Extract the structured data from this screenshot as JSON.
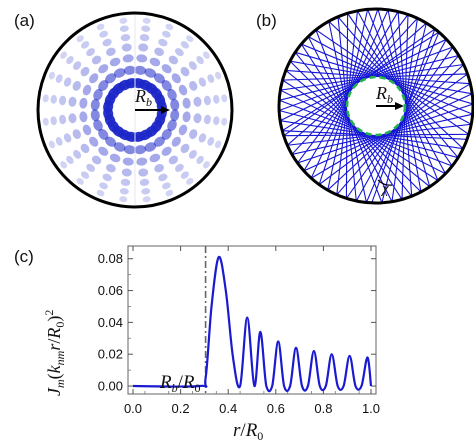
{
  "panels": {
    "a": {
      "label": "(a)",
      "radius_label_main": "R",
      "radius_label_sub": "b"
    },
    "b": {
      "label": "(b)",
      "radius_label_main": "R",
      "radius_label_sub": "b",
      "angle_label": "χ"
    },
    "c": {
      "label": "(c)"
    }
  },
  "colors": {
    "trajectory": "#1515d6",
    "caustic": "#22b14c",
    "curve": "#1a1ad0",
    "mode_pattern": "#1e28c8",
    "boundary": "#000000",
    "marker_line": "#666666"
  },
  "chart_data": {
    "type": "line",
    "xlabel_main": "r",
    "xlabel_sep": "/",
    "xlabel_den_main": "R",
    "xlabel_den_sub": "0",
    "ylabel_text": "J_m(k_nm r/R_0)^2",
    "xlim": [
      0.0,
      1.0
    ],
    "ylim": [
      -0.005,
      0.088
    ],
    "xticks": [
      "0.0",
      "0.2",
      "0.4",
      "0.6",
      "0.8",
      "1.0"
    ],
    "yticks": [
      "0.00",
      "0.02",
      "0.04",
      "0.06",
      "0.08"
    ],
    "marker": {
      "x": 0.305,
      "label_main": "R",
      "label_sub1": "b",
      "label_sep": "/",
      "label_main2": "R",
      "label_sub2": "0"
    },
    "series": [
      {
        "x": [
          0.0,
          0.28,
          0.305,
          0.33,
          0.36,
          0.39,
          0.42,
          0.45,
          0.48,
          0.51,
          0.535,
          0.56,
          0.585,
          0.61,
          0.635,
          0.66,
          0.685,
          0.71,
          0.735,
          0.76,
          0.785,
          0.81,
          0.835,
          0.86,
          0.885,
          0.91,
          0.935,
          0.96,
          0.985,
          1.0
        ],
        "y": [
          0.0,
          0.0,
          0.005,
          0.05,
          0.081,
          0.06,
          0.018,
          0.0,
          0.043,
          0.0,
          0.034,
          0.0,
          0.0,
          0.028,
          0.0,
          0.0,
          0.024,
          0.0,
          0.0,
          0.022,
          0.0,
          0.0,
          0.02,
          0.0,
          0.0,
          0.019,
          0.0,
          0.0,
          0.018,
          0.0
        ]
      }
    ]
  }
}
